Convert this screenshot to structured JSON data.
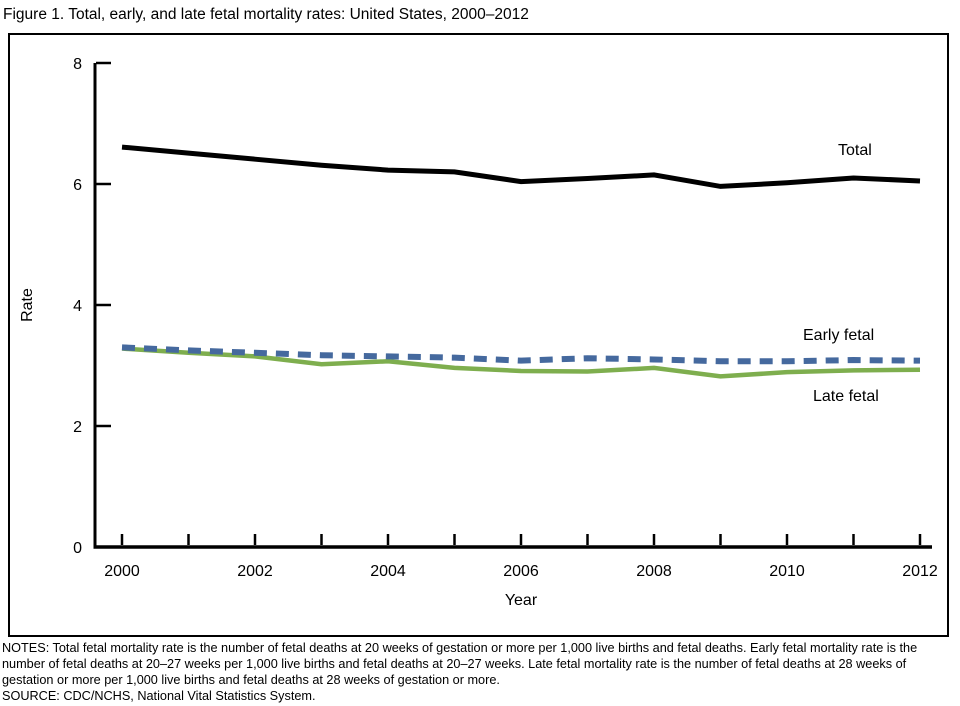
{
  "figure_title": "Figure 1. Total, early, and late fetal mortality rates: United States, 2000–2012",
  "chart_data": {
    "type": "line",
    "title": "Figure 1. Total, early, and late fetal mortality rates: United States, 2000–2012",
    "x": [
      2000,
      2001,
      2002,
      2003,
      2004,
      2005,
      2006,
      2007,
      2008,
      2009,
      2010,
      2011,
      2012
    ],
    "xlabel": "Year",
    "ylabel": "Rate",
    "ylim": [
      0,
      8
    ],
    "yticks": [
      0,
      2,
      4,
      6,
      8
    ],
    "xtick_labels": [
      2000,
      2002,
      2004,
      2006,
      2008,
      2010,
      2012
    ],
    "grid": false,
    "legend_position": "inline-labels-right",
    "series": [
      {
        "name": "Total",
        "color": "#000000",
        "style": "solid",
        "values": [
          6.61,
          6.51,
          6.41,
          6.31,
          6.23,
          6.2,
          6.04,
          6.09,
          6.15,
          5.96,
          6.02,
          6.1,
          6.05
        ]
      },
      {
        "name": "Early fetal",
        "color": "#45699e",
        "style": "dashed",
        "values": [
          3.3,
          3.25,
          3.21,
          3.17,
          3.15,
          3.13,
          3.08,
          3.12,
          3.1,
          3.07,
          3.07,
          3.09,
          3.08
        ]
      },
      {
        "name": "Late fetal",
        "color": "#7eae4e",
        "style": "solid",
        "values": [
          3.28,
          3.21,
          3.15,
          3.02,
          3.07,
          2.96,
          2.91,
          2.9,
          2.96,
          2.82,
          2.89,
          2.92,
          2.93
        ]
      }
    ]
  },
  "notes": "NOTES: Total fetal mortality rate is the number of fetal deaths at 20 weeks of gestation or more per 1,000 live births and fetal deaths. Early fetal mortality rate is the number of fetal deaths at 20–27 weeks per 1,000 live births and fetal deaths at 20–27 weeks. Late fetal mortality rate is the number of fetal deaths at 28 weeks of gestation or more per 1,000 live births and fetal deaths at 28 weeks of gestation or more.",
  "source": "SOURCE: CDC/NCHS, National Vital Statistics System."
}
